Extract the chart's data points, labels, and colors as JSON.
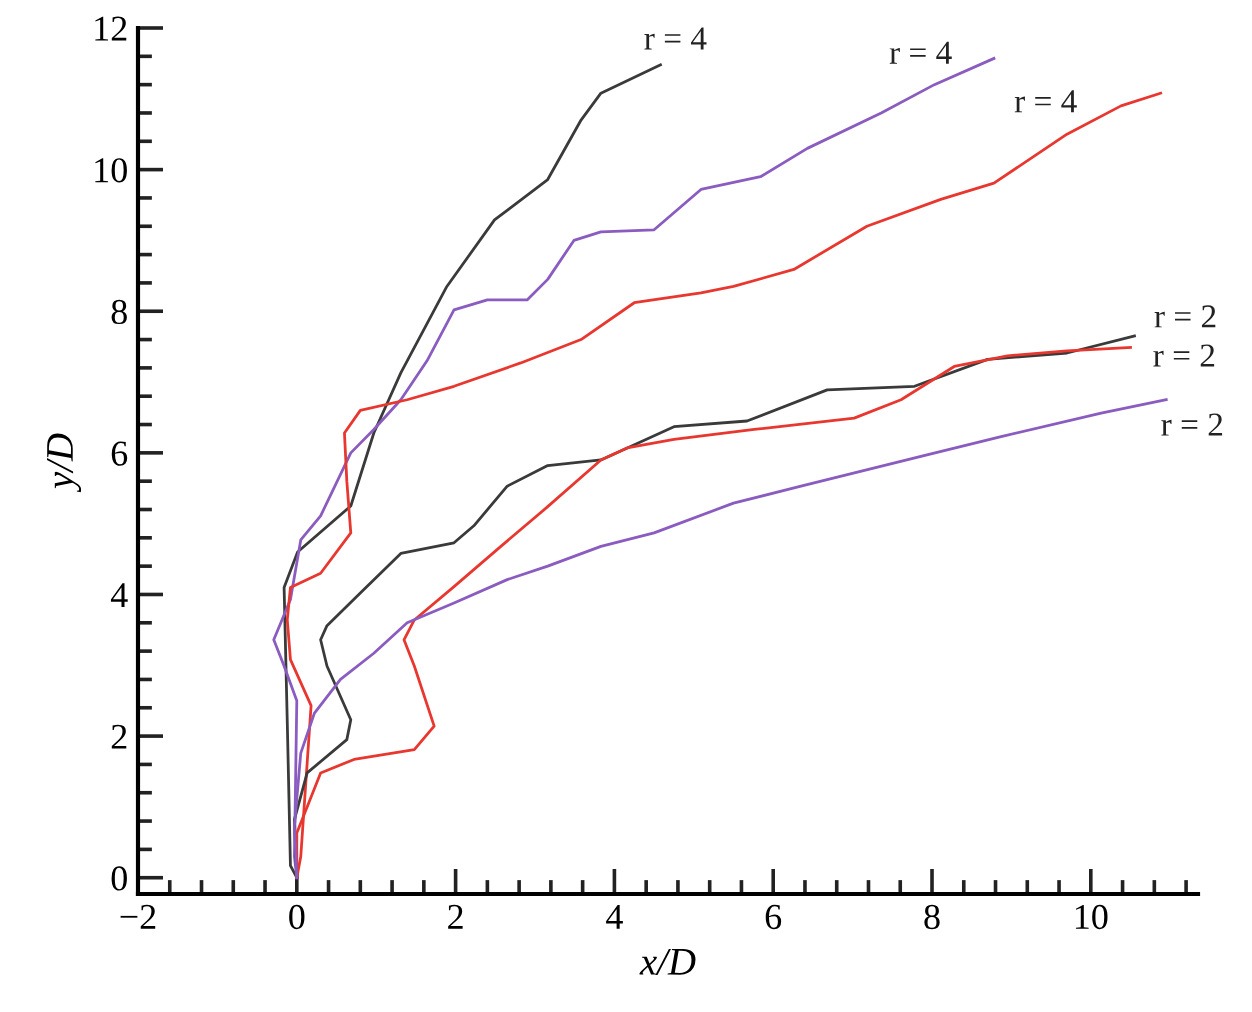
{
  "chart_data": {
    "type": "line",
    "xlabel": "x/D",
    "ylabel": "y/D",
    "xlim": [
      -2,
      11.35
    ],
    "ylim": [
      -0.23,
      12
    ],
    "xticks": [
      {
        "value": -2,
        "label": "−2"
      },
      0,
      2,
      4,
      6,
      8,
      10
    ],
    "yticks": [
      0,
      2,
      4,
      6,
      8,
      10,
      12
    ],
    "grid": false,
    "legend": false,
    "marker": "none",
    "line_style": "solid",
    "series": [
      {
        "name": "r = 4",
        "color": "#3a3a3a",
        "x": [
          0,
          -0.08,
          -0.12,
          -0.16,
          0.01,
          0.68,
          0.97,
          1.31,
          1.89,
          2.49,
          3.16,
          3.58,
          3.83,
          4.58
        ],
        "values": [
          0,
          0.17,
          2.2,
          4.1,
          4.6,
          5.25,
          6.28,
          7.13,
          8.35,
          9.29,
          9.86,
          10.7,
          11.08,
          11.48
        ]
      },
      {
        "name": "r = 4",
        "color": "#8a5cc0",
        "x": [
          0,
          -0.03,
          0.0,
          -0.16,
          -0.29,
          -0.08,
          0.05,
          0.3,
          0.68,
          0.97,
          1.31,
          1.64,
          1.98,
          2.4,
          2.9,
          3.16,
          3.49,
          3.83,
          4.5,
          5.09,
          5.84,
          6.43,
          7.36,
          8.03,
          8.78
        ],
        "values": [
          0,
          0.3,
          2.5,
          2.99,
          3.36,
          3.93,
          4.77,
          5.11,
          6.0,
          6.33,
          6.75,
          7.3,
          8.02,
          8.16,
          8.16,
          8.45,
          9.0,
          9.12,
          9.15,
          9.72,
          9.9,
          10.3,
          10.8,
          11.2,
          11.57
        ]
      },
      {
        "name": "r = 4",
        "color": "#e8372f",
        "x": [
          0,
          0.05,
          0.18,
          -0.08,
          -0.12,
          -0.08,
          0.3,
          0.68,
          0.63,
          0.6,
          0.8,
          1.39,
          1.98,
          2.82,
          3.58,
          4.25,
          5.09,
          5.5,
          6.26,
          7.18,
          8.11,
          8.78,
          9.7,
          10.38,
          10.88
        ],
        "values": [
          0,
          0.3,
          2.43,
          3.08,
          3.64,
          4.1,
          4.3,
          4.87,
          5.6,
          6.28,
          6.6,
          6.75,
          6.94,
          7.27,
          7.6,
          8.12,
          8.26,
          8.35,
          8.59,
          9.2,
          9.58,
          9.81,
          10.5,
          10.9,
          11.08
        ]
      },
      {
        "name": "r = 2",
        "color": "#3a3a3a",
        "x": [
          0,
          -0.03,
          0.13,
          0.63,
          0.68,
          0.38,
          0.3,
          0.38,
          0.8,
          1.31,
          1.98,
          2.23,
          2.65,
          3.16,
          3.83,
          4.75,
          5.67,
          6.68,
          7.78,
          8.7,
          9.7,
          10.55
        ],
        "values": [
          0,
          0.82,
          1.48,
          1.95,
          2.23,
          2.99,
          3.36,
          3.56,
          4.02,
          4.58,
          4.73,
          4.97,
          5.53,
          5.82,
          5.9,
          6.37,
          6.45,
          6.89,
          6.94,
          7.32,
          7.41,
          7.65
        ]
      },
      {
        "name": "r = 2",
        "color": "#e8372f",
        "x": [
          0,
          0.0,
          0.3,
          0.72,
          1.48,
          1.73,
          1.48,
          1.35,
          1.48,
          1.98,
          2.57,
          3.16,
          3.83,
          4.16,
          4.75,
          5.76,
          7.02,
          7.61,
          8.28,
          8.95,
          9.7,
          10.5
        ],
        "values": [
          0,
          0.63,
          1.48,
          1.67,
          1.81,
          2.14,
          2.99,
          3.36,
          3.64,
          4.11,
          4.68,
          5.24,
          5.9,
          6.07,
          6.19,
          6.33,
          6.49,
          6.75,
          7.22,
          7.37,
          7.44,
          7.49
        ]
      },
      {
        "name": "r = 2",
        "color": "#8a5cc0",
        "x": [
          0,
          -0.03,
          0.05,
          0.22,
          0.55,
          0.97,
          1.39,
          1.98,
          2.65,
          3.16,
          3.83,
          4.5,
          5.5,
          6.35,
          7.86,
          8.87,
          10.13,
          10.95
        ],
        "values": [
          0,
          0.73,
          1.76,
          2.32,
          2.8,
          3.17,
          3.6,
          3.88,
          4.21,
          4.4,
          4.68,
          4.87,
          5.29,
          5.53,
          5.95,
          6.23,
          6.56,
          6.75
        ]
      }
    ]
  }
}
